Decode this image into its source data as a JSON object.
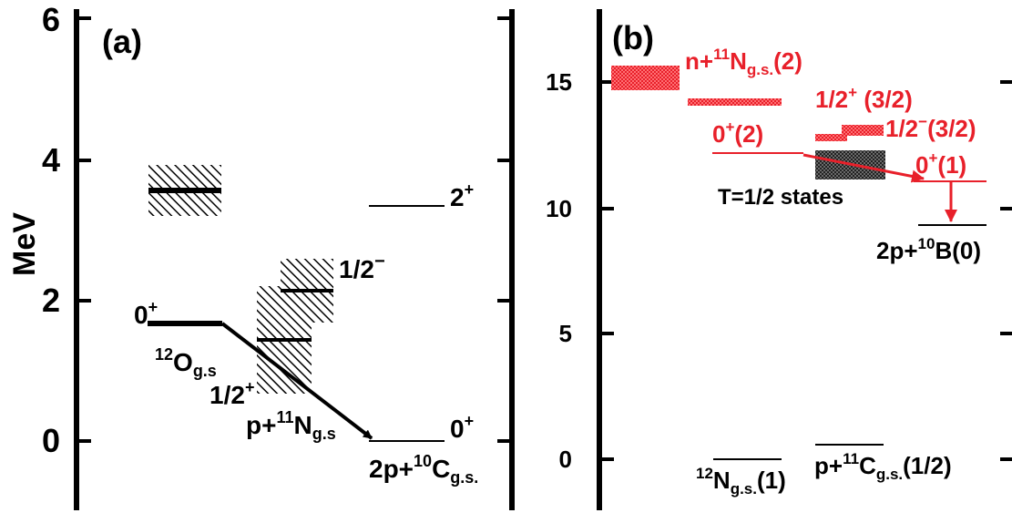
{
  "panel_a": {
    "label": "(a)",
    "y_axis_title": "MeV",
    "y_ticks": [
      "0",
      "2",
      "4",
      "6"
    ],
    "level_labels": {
      "o12_spin_main": "0",
      "o12_spin_sup": "+",
      "o12_name_sup": "12",
      "o12_name_main": "O",
      "o12_name_sub": "g.s",
      "half_minus_main": "1/2",
      "half_minus_sup": "−",
      "half_plus_main": "1/2",
      "half_plus_sup": "+",
      "pN_prefix": "p+",
      "pN_sup": "11",
      "pN_main": "N",
      "pN_sub": "g.s",
      "two_plus_main": "2",
      "two_plus_sup": "+",
      "zero_plus_main": "0",
      "zero_plus_sup": "+",
      "c10_prefix": "2p+",
      "c10_sup": "10",
      "c10_main": "C",
      "c10_sub": "g.s."
    }
  },
  "panel_b": {
    "label": "(b)",
    "y_ticks": [
      "0",
      "5",
      "10",
      "15"
    ],
    "level_labels": {
      "nN_prefix": "n+",
      "nN_sup": "11",
      "nN_main": "N",
      "nN_sub": "g.s.",
      "nN_iso": "(2)",
      "half_plus_main": "1/2",
      "half_plus_sup": "+",
      "half_plus_iso": " (3/2)",
      "half_minus_main": "1/2",
      "half_minus_sup": "−",
      "half_minus_iso": "(3/2)",
      "zero2_main": "0",
      "zero2_sup": "+",
      "zero2_iso": "(2)",
      "zero1_main": "0",
      "zero1_sup": "+",
      "zero1_iso": "(1)",
      "t_half_states": "T=1/2 states",
      "b10_prefix": "2p+",
      "b10_sup": "10",
      "b10_main": "B(0)",
      "n12_sup": "12",
      "n12_main": "N",
      "n12_sub": "g.s.",
      "n12_iso": "(1)",
      "pC_prefix": "p+",
      "pC_sup": "11",
      "pC_main": "C",
      "pC_sub": "g.s.",
      "pC_iso": "(1/2)"
    }
  },
  "colors": {
    "black": "#000000",
    "red": "#e8202a"
  }
}
